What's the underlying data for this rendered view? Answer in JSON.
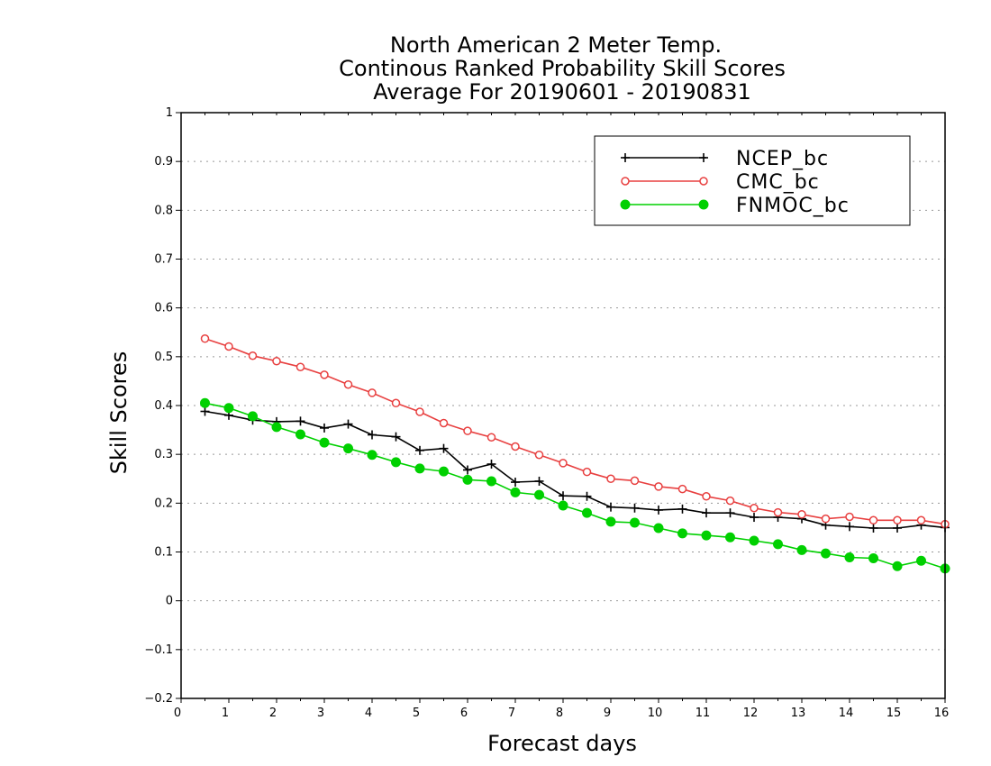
{
  "chart_data": {
    "type": "line",
    "title": [
      "North American 2 Meter Temp.",
      "Continous Ranked Probability Skill Scores",
      "Average For 20190601 - 20190831"
    ],
    "xlabel": "Forecast days",
    "ylabel": "Skill Scores",
    "xlim": [
      0,
      16
    ],
    "ylim": [
      -0.2,
      1
    ],
    "x_ticks": [
      "0",
      "1",
      "2",
      "3",
      "4",
      "5",
      "6",
      "7",
      "8",
      "9",
      "10",
      "11",
      "12",
      "13",
      "14",
      "15",
      "16"
    ],
    "y_ticks": [
      "1",
      "0.9",
      "0.8",
      "0.7",
      "0.6",
      "0.5",
      "0.4",
      "0.3",
      "0.2",
      "0.1",
      "0",
      "−0.1",
      "−0.2"
    ],
    "y_tick_values": [
      1,
      0.9,
      0.8,
      0.7,
      0.6,
      0.5,
      0.4,
      0.3,
      0.2,
      0.1,
      0,
      -0.1,
      -0.2
    ],
    "grid": "horizontal dotted",
    "legend_position": "top-right",
    "x": [
      0.5,
      1.0,
      1.5,
      2.0,
      2.5,
      3.0,
      3.5,
      4.0,
      4.5,
      5.0,
      5.5,
      6.0,
      6.5,
      7.0,
      7.5,
      8.0,
      8.5,
      9.0,
      9.5,
      10.0,
      10.5,
      11.0,
      11.5,
      12.0,
      12.5,
      13.0,
      13.5,
      14.0,
      14.5,
      15.0,
      15.5,
      16.0
    ],
    "series": [
      {
        "name": "NCEP_bc",
        "color": "#000000",
        "marker": "plus",
        "values": [
          0.388,
          0.38,
          0.37,
          0.367,
          0.368,
          0.354,
          0.362,
          0.34,
          0.336,
          0.308,
          0.312,
          0.268,
          0.28,
          0.243,
          0.245,
          0.215,
          0.214,
          0.192,
          0.19,
          0.186,
          0.188,
          0.18,
          0.18,
          0.171,
          0.171,
          0.168,
          0.155,
          0.152,
          0.149,
          0.149,
          0.155,
          0.15
        ]
      },
      {
        "name": "CMC_bc",
        "color": "#e84040",
        "marker": "open-circle",
        "values": [
          0.537,
          0.521,
          0.502,
          0.491,
          0.479,
          0.463,
          0.443,
          0.426,
          0.405,
          0.387,
          0.364,
          0.348,
          0.335,
          0.316,
          0.299,
          0.282,
          0.264,
          0.25,
          0.246,
          0.234,
          0.229,
          0.214,
          0.205,
          0.19,
          0.181,
          0.177,
          0.168,
          0.172,
          0.165,
          0.165,
          0.165,
          0.157
        ]
      },
      {
        "name": "FNMOC_bc",
        "color": "#00d000",
        "marker": "filled-circle",
        "values": [
          0.405,
          0.395,
          0.378,
          0.356,
          0.341,
          0.324,
          0.312,
          0.299,
          0.284,
          0.271,
          0.265,
          0.248,
          0.245,
          0.222,
          0.217,
          0.195,
          0.18,
          0.162,
          0.16,
          0.149,
          0.138,
          0.134,
          0.13,
          0.123,
          0.116,
          0.104,
          0.097,
          0.089,
          0.087,
          0.071,
          0.082,
          0.066
        ]
      }
    ]
  }
}
